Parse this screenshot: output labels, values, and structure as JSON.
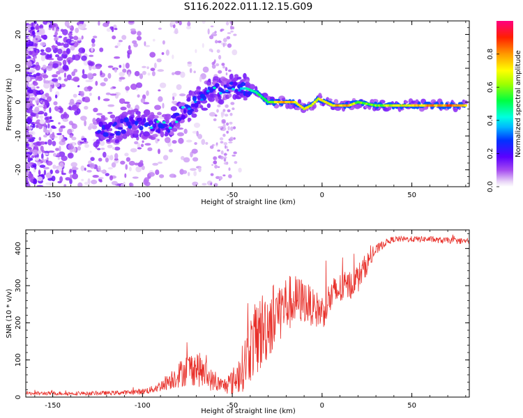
{
  "title": "S116.2022.011.12.15.G09",
  "chart_data": [
    {
      "type": "heatmap",
      "name": "spectrogram",
      "xlabel": "Height of straight line (km)",
      "ylabel": "Frequency (Hz)",
      "xlim": [
        -165,
        82
      ],
      "ylim": [
        -25,
        24
      ],
      "xticks": [
        -150,
        -100,
        -50,
        0,
        50
      ],
      "yticks": [
        -20,
        -10,
        0,
        10,
        20
      ],
      "colorbar": {
        "label": "Normalized spectral amplitude",
        "range": [
          0.0,
          1.0
        ],
        "ticks": [
          0.0,
          0.2,
          0.4,
          0.6,
          0.8
        ],
        "tick_labels": [
          "0.0",
          "0.2",
          "0.4",
          "0.6",
          "0.8"
        ]
      },
      "ridge": {
        "x": [
          -125,
          -115,
          -105,
          -95,
          -85,
          -78,
          -70,
          -62,
          -55,
          -48,
          -42,
          -37,
          -30,
          -25,
          -20,
          -15,
          -10,
          -6,
          -2,
          2,
          6,
          10,
          15,
          20,
          30,
          40,
          50,
          60,
          70,
          80
        ],
        "y": [
          -8,
          -8,
          -6,
          -7,
          -7,
          -3,
          0,
          3,
          4,
          4,
          4,
          3,
          0,
          0,
          0,
          0,
          -2,
          -1,
          1,
          0,
          -1,
          -1,
          -1,
          0,
          -1,
          -1,
          -1,
          -1,
          -1,
          -1
        ],
        "amplitude": [
          0.3,
          0.3,
          0.3,
          0.3,
          0.35,
          0.35,
          0.4,
          0.4,
          0.4,
          0.4,
          0.45,
          0.5,
          0.55,
          0.75,
          0.8,
          0.75,
          0.7,
          0.7,
          0.75,
          0.7,
          0.75,
          0.8,
          0.8,
          0.6,
          0.6,
          0.7,
          0.75,
          0.8,
          0.85,
          0.8
        ]
      }
    },
    {
      "type": "line",
      "name": "snr",
      "xlabel": "Height of straight line (km)",
      "ylabel": "SNR (10 * v/v)",
      "xlim": [
        -165,
        82
      ],
      "ylim": [
        0,
        450
      ],
      "xticks": [
        -150,
        -100,
        -50,
        0,
        50
      ],
      "yticks": [
        0,
        100,
        200,
        300,
        400
      ],
      "color": "#e8302a",
      "series": [
        {
          "name": "SNR",
          "x": [
            -165,
            -150,
            -130,
            -110,
            -100,
            -95,
            -90,
            -85,
            -80,
            -75,
            -70,
            -65,
            -60,
            -55,
            -50,
            -45,
            -40,
            -35,
            -30,
            -25,
            -20,
            -15,
            -10,
            -5,
            0,
            5,
            10,
            15,
            20,
            25,
            30,
            35,
            40,
            45,
            50,
            55,
            60,
            65,
            70,
            75,
            82
          ],
          "values": [
            10,
            10,
            10,
            12,
            15,
            20,
            30,
            45,
            60,
            75,
            80,
            60,
            40,
            30,
            40,
            70,
            130,
            170,
            200,
            230,
            250,
            260,
            260,
            240,
            230,
            270,
            290,
            300,
            320,
            360,
            395,
            415,
            425,
            425,
            425,
            425,
            425,
            422,
            422,
            420,
            420
          ],
          "noise_amplitude": [
            5,
            5,
            5,
            6,
            8,
            10,
            15,
            25,
            35,
            45,
            50,
            40,
            25,
            20,
            35,
            60,
            90,
            110,
            100,
            90,
            80,
            70,
            60,
            50,
            50,
            50,
            45,
            40,
            40,
            30,
            15,
            10,
            8,
            8,
            8,
            8,
            8,
            8,
            8,
            8,
            8
          ]
        }
      ]
    }
  ]
}
